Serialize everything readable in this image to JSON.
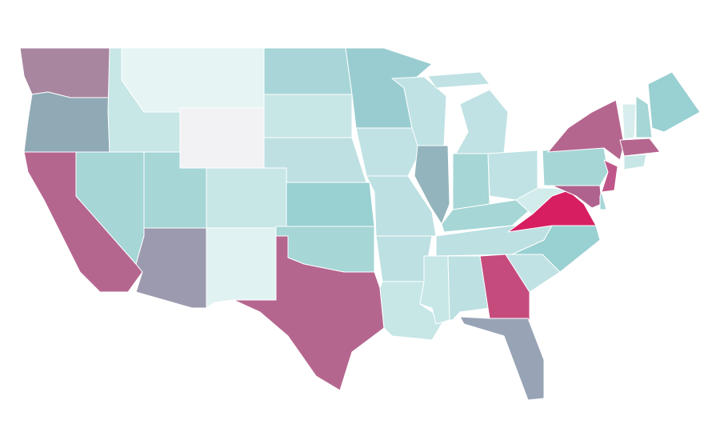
{
  "map": {
    "regions": [
      {
        "color": "#a8869f"
      },
      {
        "color": "#8fa9b5"
      },
      {
        "color": "#b5668f"
      },
      {
        "color": "#a6d6d6"
      },
      {
        "color": "#c7e6e6"
      },
      {
        "color": "#e6f4f4"
      },
      {
        "color": "#f2f2f4"
      },
      {
        "color": "#a6d6d6"
      },
      {
        "color": "#c7e6e6"
      },
      {
        "color": "#9c9aae"
      },
      {
        "color": "#e0f2f2"
      },
      {
        "color": "#a8d6d8"
      },
      {
        "color": "#c7e6e6"
      },
      {
        "color": "#bfe0e2"
      },
      {
        "color": "#99d0d2"
      },
      {
        "color": "#a6d6d6"
      },
      {
        "color": "#b5668f"
      },
      {
        "color": "#99ccd0"
      },
      {
        "color": "#c0e2e4"
      },
      {
        "color": "#bde0e2"
      },
      {
        "color": "#bde0e2"
      },
      {
        "color": "#c7e6e6"
      },
      {
        "color": "#c0e2e4"
      },
      {
        "color": "#93b4bc"
      },
      {
        "color": "#c0e2e4"
      },
      {
        "color": "#c0e2e4"
      },
      {
        "color": "#a6d6d6"
      },
      {
        "color": "#c0e2e4"
      },
      {
        "color": "#a6d6d6"
      },
      {
        "color": "#bde0e2"
      },
      {
        "color": "#c7e6e6"
      },
      {
        "color": "#bde0e2"
      },
      {
        "color": "#c64b7d"
      },
      {
        "color": "#98a4b6"
      },
      {
        "color": "#c0e2e4"
      },
      {
        "color": "#99d0d2"
      },
      {
        "color": "#d71e61"
      },
      {
        "color": "#d2ecec"
      },
      {
        "color": "#a6d6d6"
      },
      {
        "color": "#b5668f"
      },
      {
        "color": "#c0578a"
      },
      {
        "color": "#b0628e"
      },
      {
        "color": "#a6d6d6"
      },
      {
        "color": "#b5668f"
      },
      {
        "color": "#c7e6e6"
      },
      {
        "color": "#d8eeee"
      },
      {
        "color": "#a6d6d6"
      },
      {
        "color": "#99d0d2"
      }
    ]
  }
}
